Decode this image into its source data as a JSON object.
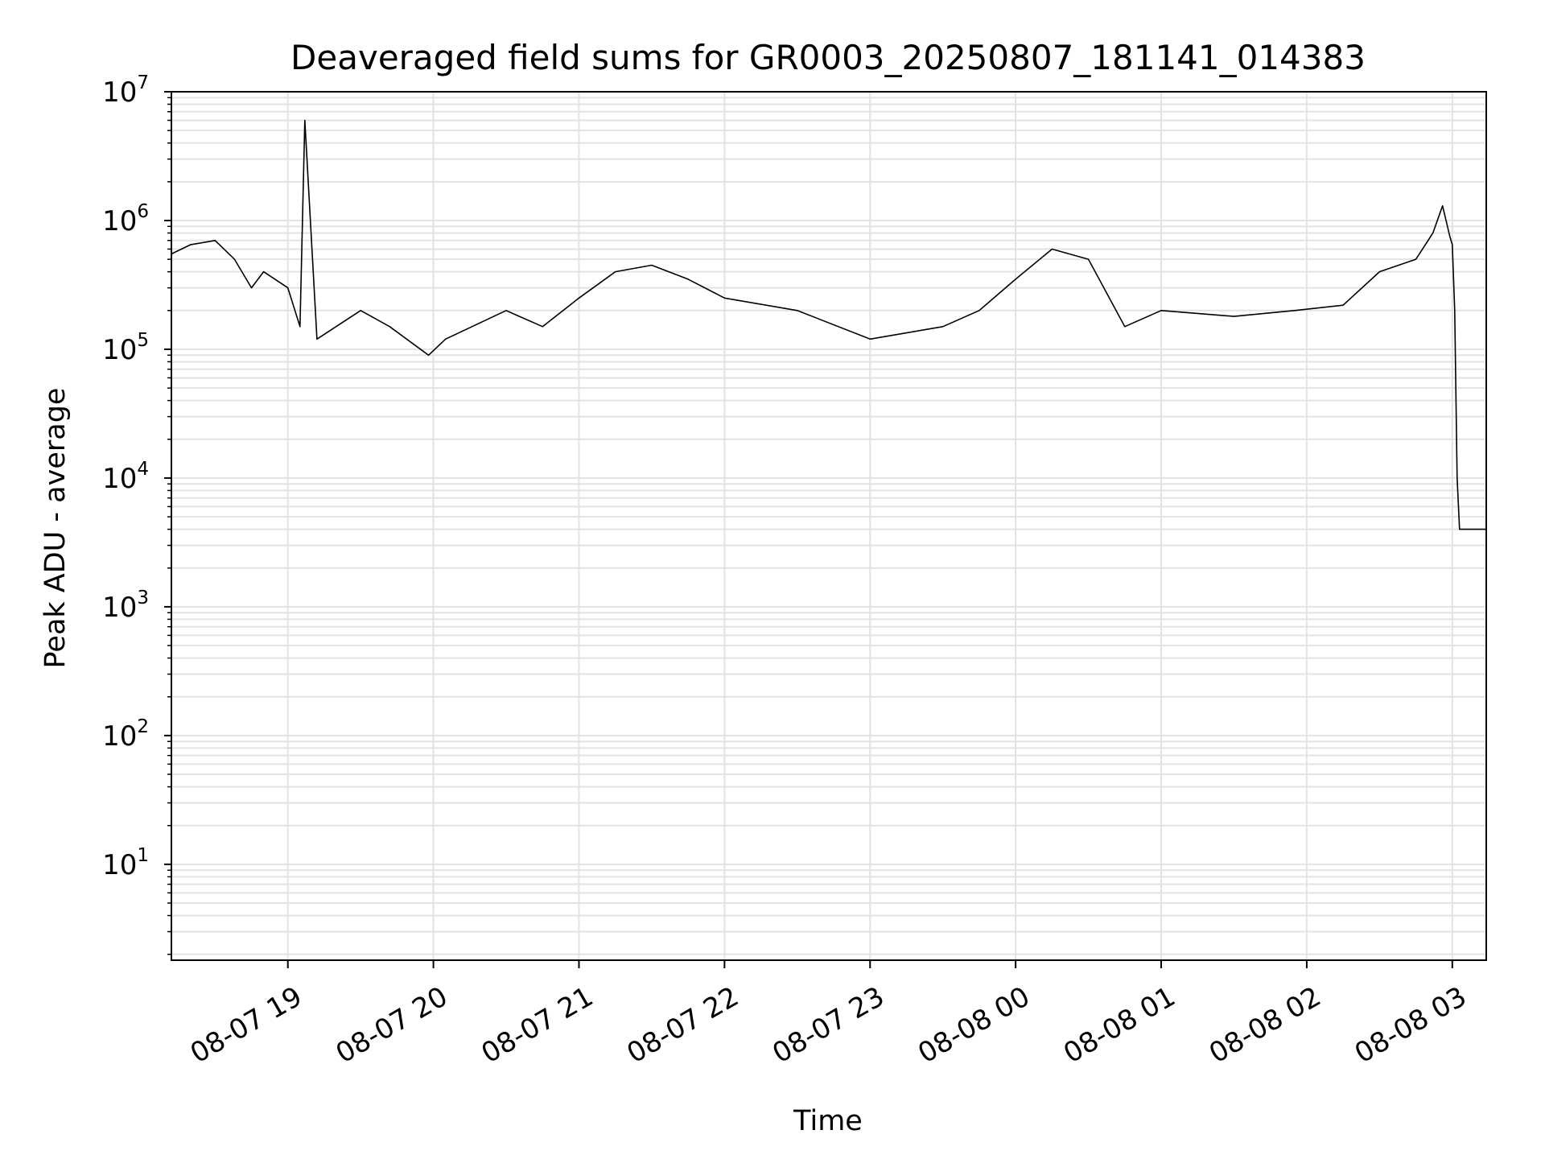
{
  "chart_data": {
    "type": "line",
    "title": "Deaveraged field sums for GR0003_20250807_181141_014383",
    "xlabel": "Time",
    "ylabel": "Peak ADU - average",
    "yscale": "log",
    "grid": true,
    "line_color": "#000000",
    "grid_color": "#e3e3e3",
    "xlim": [
      "2025-08-07 18:12",
      "2025-08-08 03:14"
    ],
    "ylim": [
      1.8,
      10000000
    ],
    "x_ticks": [
      {
        "value": "2025-08-07 19:00",
        "label": "08-07 19"
      },
      {
        "value": "2025-08-07 20:00",
        "label": "08-07 20"
      },
      {
        "value": "2025-08-07 21:00",
        "label": "08-07 21"
      },
      {
        "value": "2025-08-07 22:00",
        "label": "08-07 22"
      },
      {
        "value": "2025-08-07 23:00",
        "label": "08-07 23"
      },
      {
        "value": "2025-08-08 00:00",
        "label": "08-08 00"
      },
      {
        "value": "2025-08-08 01:00",
        "label": "08-08 01"
      },
      {
        "value": "2025-08-08 02:00",
        "label": "08-08 02"
      },
      {
        "value": "2025-08-08 03:00",
        "label": "08-08 03"
      }
    ],
    "y_ticks": [
      {
        "value": 10,
        "base": "10",
        "exp": "1"
      },
      {
        "value": 100,
        "base": "10",
        "exp": "2"
      },
      {
        "value": 1000,
        "base": "10",
        "exp": "3"
      },
      {
        "value": 10000,
        "base": "10",
        "exp": "4"
      },
      {
        "value": 100000,
        "base": "10",
        "exp": "5"
      },
      {
        "value": 1000000,
        "base": "10",
        "exp": "6"
      },
      {
        "value": 10000000,
        "base": "10",
        "exp": "7"
      }
    ],
    "series": [
      {
        "x": [
          "2025-08-07 18:12",
          "2025-08-07 18:20",
          "2025-08-07 18:30",
          "2025-08-07 18:38",
          "2025-08-07 18:45",
          "2025-08-07 18:50",
          "2025-08-07 19:00",
          "2025-08-07 19:05",
          "2025-08-07 19:07",
          "2025-08-07 19:12",
          "2025-08-07 19:30",
          "2025-08-07 19:42",
          "2025-08-07 19:58",
          "2025-08-07 20:05",
          "2025-08-07 20:30",
          "2025-08-07 20:45",
          "2025-08-07 21:00",
          "2025-08-07 21:15",
          "2025-08-07 21:30",
          "2025-08-07 21:45",
          "2025-08-07 22:00",
          "2025-08-07 22:30",
          "2025-08-07 23:00",
          "2025-08-07 23:30",
          "2025-08-07 23:45",
          "2025-08-08 00:00",
          "2025-08-08 00:15",
          "2025-08-08 00:30",
          "2025-08-08 00:45",
          "2025-08-08 01:00",
          "2025-08-08 01:30",
          "2025-08-08 01:55",
          "2025-08-08 02:15",
          "2025-08-08 02:30",
          "2025-08-08 02:45",
          "2025-08-08 02:52",
          "2025-08-08 02:56",
          "2025-08-08 02:59",
          "2025-08-08 03:00",
          "2025-08-08 03:01",
          "2025-08-08 03:02",
          "2025-08-08 03:03",
          "2025-08-08 03:05",
          "2025-08-08 03:14"
        ],
        "y": [
          550000,
          650000,
          700000,
          500000,
          300000,
          400000,
          300000,
          150000,
          6000000,
          120000,
          200000,
          150000,
          90000,
          120000,
          200000,
          150000,
          250000,
          400000,
          450000,
          350000,
          250000,
          200000,
          120000,
          150000,
          200000,
          350000,
          600000,
          500000,
          150000,
          200000,
          180000,
          200000,
          220000,
          400000,
          500000,
          800000,
          1300000,
          750000,
          650000,
          200000,
          10000,
          4000,
          4000,
          4000
        ]
      }
    ]
  }
}
